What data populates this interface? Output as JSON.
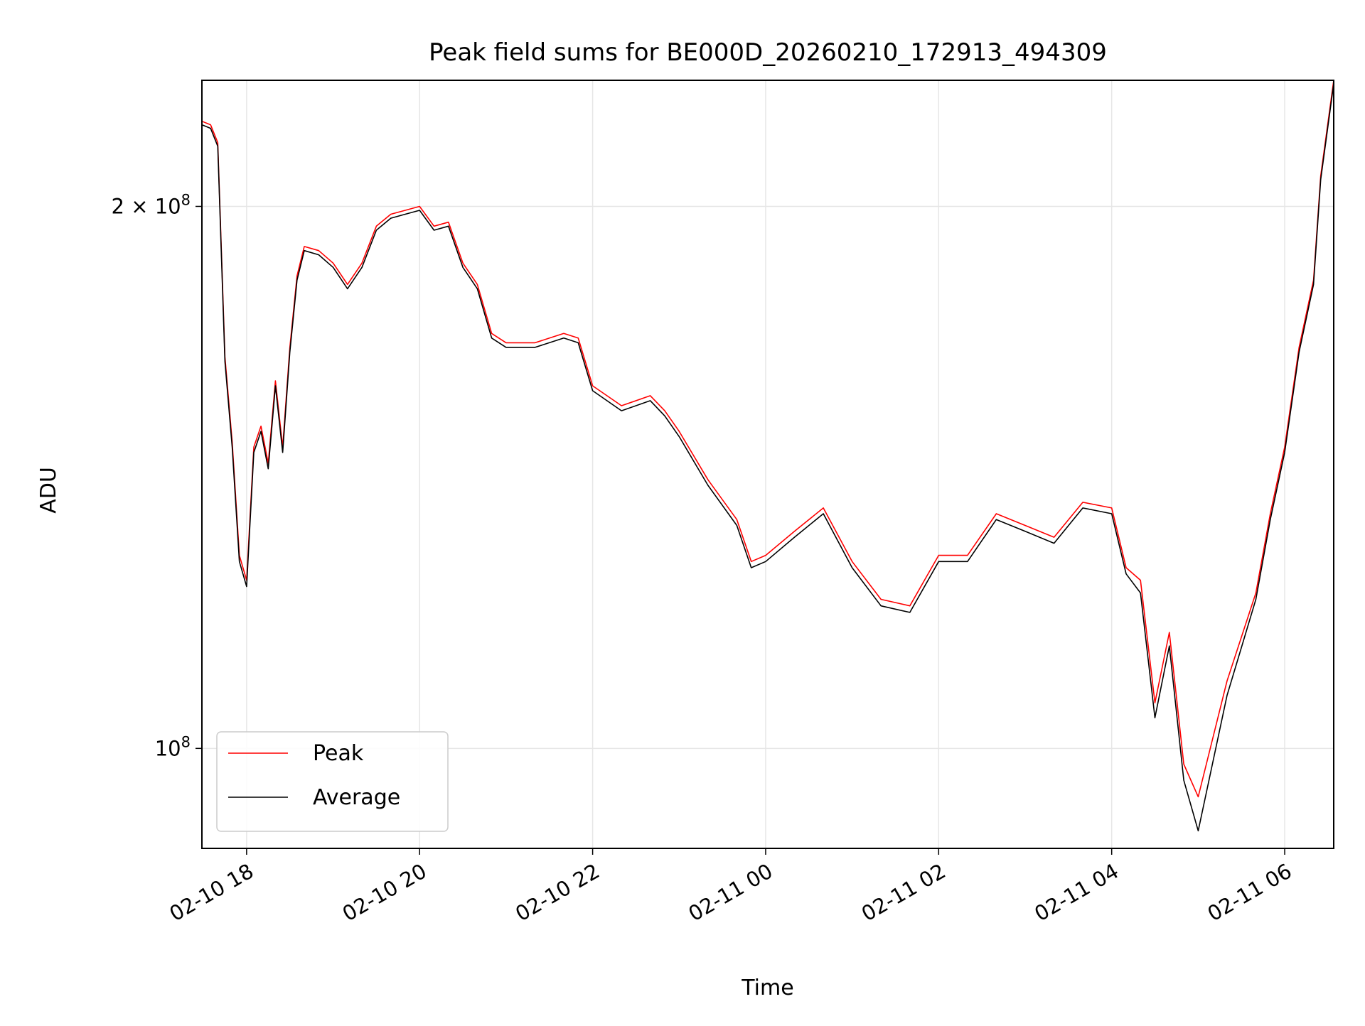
{
  "chart_data": {
    "type": "line",
    "title": "Peak field sums for BE000D_20260210_172913_494309",
    "xlabel": "Time",
    "ylabel": "ADU",
    "y_scale": "log",
    "ylim": [
      88000000,
      235000000
    ],
    "xlim": [
      "2026-02-10T17:29",
      "2026-02-11T06:34"
    ],
    "grid": true,
    "legend_position": "lower-left",
    "x_ticks": [
      {
        "value": "2026-02-10T18:00",
        "label": "02-10 18"
      },
      {
        "value": "2026-02-10T20:00",
        "label": "02-10 20"
      },
      {
        "value": "2026-02-10T22:00",
        "label": "02-10 22"
      },
      {
        "value": "2026-02-11T00:00",
        "label": "02-11 00"
      },
      {
        "value": "2026-02-11T02:00",
        "label": "02-11 02"
      },
      {
        "value": "2026-02-11T04:00",
        "label": "02-11 04"
      },
      {
        "value": "2026-02-11T06:00",
        "label": "02-11 06"
      }
    ],
    "y_ticks": [
      {
        "value": 100000000,
        "base": "10",
        "exp": "8",
        "coef": ""
      },
      {
        "value": 200000000,
        "base": "10",
        "exp": "8",
        "coef": "2 × "
      }
    ],
    "series": [
      {
        "name": "Peak",
        "color": "#ff0000",
        "x": [
          "2026-02-10T17:29",
          "2026-02-10T17:35",
          "2026-02-10T17:40",
          "2026-02-10T17:45",
          "2026-02-10T17:50",
          "2026-02-10T17:55",
          "2026-02-10T18:00",
          "2026-02-10T18:05",
          "2026-02-10T18:10",
          "2026-02-10T18:15",
          "2026-02-10T18:20",
          "2026-02-10T18:25",
          "2026-02-10T18:30",
          "2026-02-10T18:35",
          "2026-02-10T18:40",
          "2026-02-10T18:50",
          "2026-02-10T19:00",
          "2026-02-10T19:10",
          "2026-02-10T19:20",
          "2026-02-10T19:30",
          "2026-02-10T19:40",
          "2026-02-10T19:50",
          "2026-02-10T20:00",
          "2026-02-10T20:10",
          "2026-02-10T20:20",
          "2026-02-10T20:30",
          "2026-02-10T20:40",
          "2026-02-10T20:50",
          "2026-02-10T21:00",
          "2026-02-10T21:20",
          "2026-02-10T21:40",
          "2026-02-10T21:50",
          "2026-02-10T22:00",
          "2026-02-10T22:20",
          "2026-02-10T22:40",
          "2026-02-10T22:50",
          "2026-02-10T23:00",
          "2026-02-10T23:20",
          "2026-02-10T23:40",
          "2026-02-10T23:50",
          "2026-02-11T00:00",
          "2026-02-11T00:20",
          "2026-02-11T00:40",
          "2026-02-11T01:00",
          "2026-02-11T01:20",
          "2026-02-11T01:40",
          "2026-02-11T02:00",
          "2026-02-11T02:20",
          "2026-02-11T02:40",
          "2026-02-11T03:00",
          "2026-02-11T03:20",
          "2026-02-11T03:40",
          "2026-02-11T04:00",
          "2026-02-11T04:10",
          "2026-02-11T04:20",
          "2026-02-11T04:30",
          "2026-02-11T04:40",
          "2026-02-11T04:50",
          "2026-02-11T05:00",
          "2026-02-11T05:20",
          "2026-02-11T05:40",
          "2026-02-11T05:50",
          "2026-02-11T06:00",
          "2026-02-11T06:10",
          "2026-02-11T06:20",
          "2026-02-11T06:25",
          "2026-02-11T06:34"
        ],
        "y": [
          223000000,
          222000000,
          217000000,
          165000000,
          148000000,
          128000000,
          124000000,
          147000000,
          151000000,
          144000000,
          160000000,
          147000000,
          167000000,
          183000000,
          190000000,
          189000000,
          186000000,
          181000000,
          186000000,
          195000000,
          198000000,
          199000000,
          200000000,
          195000000,
          196000000,
          186000000,
          181000000,
          170000000,
          168000000,
          168000000,
          170000000,
          169000000,
          159000000,
          155000000,
          157000000,
          154000000,
          150000000,
          141000000,
          134000000,
          127000000,
          128000000,
          132000000,
          136000000,
          127000000,
          121000000,
          120000000,
          128000000,
          128000000,
          135000000,
          133000000,
          131000000,
          137000000,
          136000000,
          126000000,
          124000000,
          106000000,
          116000000,
          98000000,
          94000000,
          109000000,
          122000000,
          135000000,
          147000000,
          167000000,
          182000000,
          208000000,
          235000000
        ]
      },
      {
        "name": "Average",
        "color": "#000000",
        "x": [
          "2026-02-10T17:29",
          "2026-02-10T17:35",
          "2026-02-10T17:40",
          "2026-02-10T17:45",
          "2026-02-10T17:50",
          "2026-02-10T17:55",
          "2026-02-10T18:00",
          "2026-02-10T18:05",
          "2026-02-10T18:10",
          "2026-02-10T18:15",
          "2026-02-10T18:20",
          "2026-02-10T18:25",
          "2026-02-10T18:30",
          "2026-02-10T18:35",
          "2026-02-10T18:40",
          "2026-02-10T18:50",
          "2026-02-10T19:00",
          "2026-02-10T19:10",
          "2026-02-10T19:20",
          "2026-02-10T19:30",
          "2026-02-10T19:40",
          "2026-02-10T19:50",
          "2026-02-10T20:00",
          "2026-02-10T20:10",
          "2026-02-10T20:20",
          "2026-02-10T20:30",
          "2026-02-10T20:40",
          "2026-02-10T20:50",
          "2026-02-10T21:00",
          "2026-02-10T21:20",
          "2026-02-10T21:40",
          "2026-02-10T21:50",
          "2026-02-10T22:00",
          "2026-02-10T22:20",
          "2026-02-10T22:40",
          "2026-02-10T22:50",
          "2026-02-10T23:00",
          "2026-02-10T23:20",
          "2026-02-10T23:40",
          "2026-02-10T23:50",
          "2026-02-11T00:00",
          "2026-02-11T00:20",
          "2026-02-11T00:40",
          "2026-02-11T01:00",
          "2026-02-11T01:20",
          "2026-02-11T01:40",
          "2026-02-11T02:00",
          "2026-02-11T02:20",
          "2026-02-11T02:40",
          "2026-02-11T03:00",
          "2026-02-11T03:20",
          "2026-02-11T03:40",
          "2026-02-11T04:00",
          "2026-02-11T04:10",
          "2026-02-11T04:20",
          "2026-02-11T04:30",
          "2026-02-11T04:40",
          "2026-02-11T04:50",
          "2026-02-11T05:00",
          "2026-02-11T05:20",
          "2026-02-11T05:40",
          "2026-02-11T05:50",
          "2026-02-11T06:00",
          "2026-02-11T06:10",
          "2026-02-11T06:20",
          "2026-02-11T06:25",
          "2026-02-11T06:34"
        ],
        "y": [
          222000000,
          221000000,
          216000000,
          164000000,
          147000000,
          127000000,
          123000000,
          146000000,
          150000000,
          143000000,
          159000000,
          146000000,
          166000000,
          182000000,
          189000000,
          188000000,
          185000000,
          180000000,
          185000000,
          194000000,
          197000000,
          198000000,
          199000000,
          194000000,
          195000000,
          185000000,
          180000000,
          169000000,
          167000000,
          167000000,
          169000000,
          168000000,
          158000000,
          154000000,
          156000000,
          153000000,
          149000000,
          140000000,
          133000000,
          126000000,
          127000000,
          131000000,
          135000000,
          126000000,
          120000000,
          119000000,
          127000000,
          127000000,
          134000000,
          132000000,
          130000000,
          136000000,
          135000000,
          125000000,
          122000000,
          104000000,
          114000000,
          96000000,
          90000000,
          107000000,
          121000000,
          134000000,
          146000000,
          166000000,
          181000000,
          207000000,
          234000000
        ]
      }
    ]
  }
}
